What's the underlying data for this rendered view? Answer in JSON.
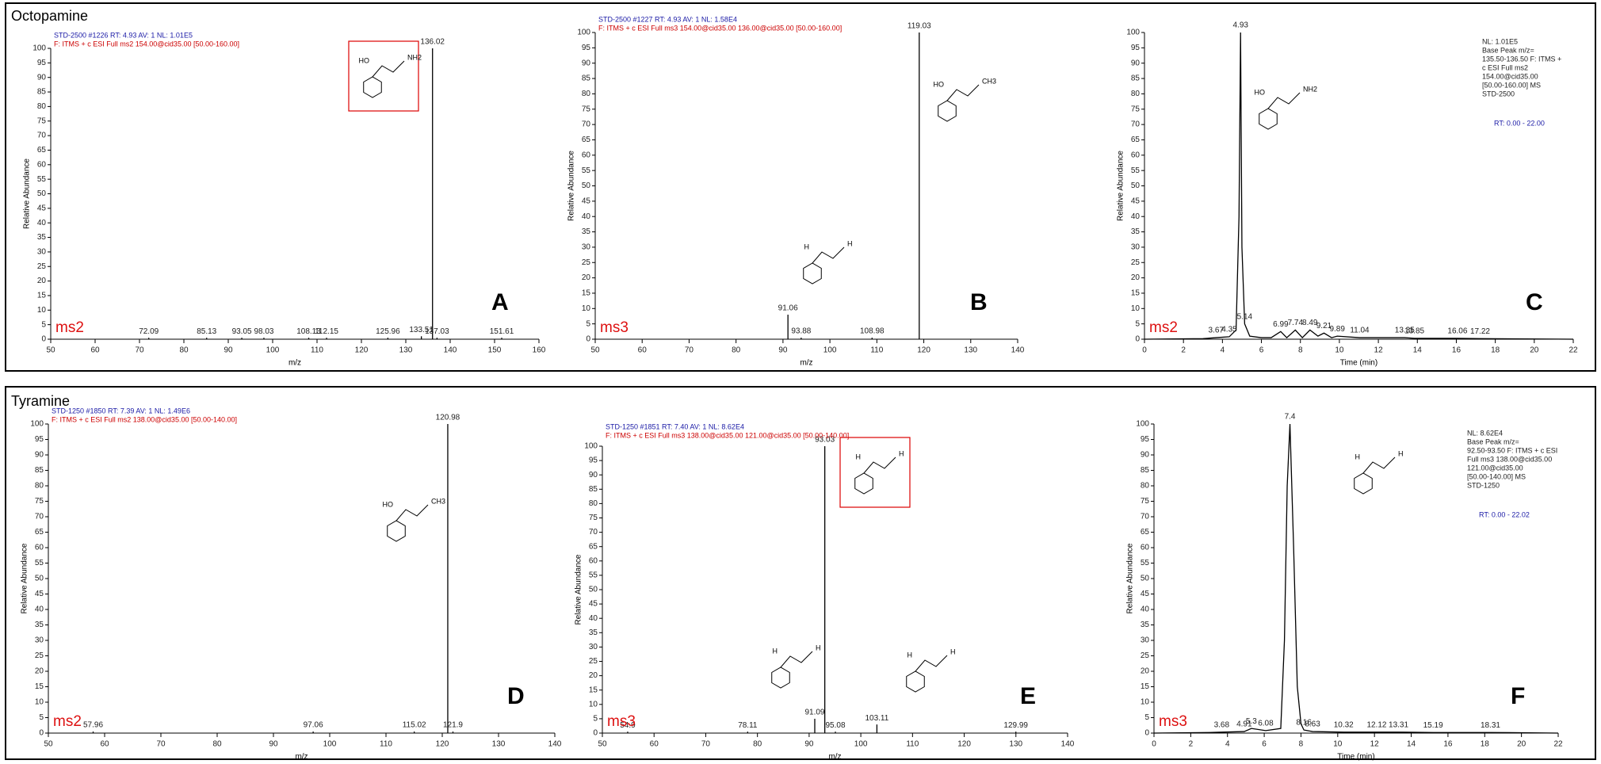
{
  "groups": [
    "Octopamine",
    "Tyramine"
  ],
  "chart_data": [
    {
      "type": "stick",
      "xlabel": "m/z",
      "ylabel": "Relative Abundance",
      "letter": "A",
      "stage": "ms2",
      "header": [
        "STD-2500 #1226  RT: 4.93  AV: 1  NL: 1.01E5",
        "F: ITMS + c ESI Full ms2 154.00@cid35.00 [50.00-160.00]"
      ],
      "header_colors": [
        "#1a1aa6",
        "#cc0000"
      ],
      "xlim": [
        50,
        160
      ],
      "xticks": [
        50,
        60,
        70,
        80,
        90,
        100,
        110,
        120,
        130,
        140,
        150,
        160
      ],
      "ylim": [
        0,
        100
      ],
      "yticks": [
        0,
        5,
        10,
        15,
        20,
        25,
        30,
        35,
        40,
        45,
        50,
        55,
        60,
        65,
        70,
        75,
        80,
        85,
        90,
        95,
        100
      ],
      "x": [
        72.09,
        85.13,
        93.05,
        98.03,
        108.13,
        112.15,
        125.96,
        133.51,
        136.02,
        137.03,
        151.61
      ],
      "values": [
        0.5,
        0.5,
        0.5,
        0.5,
        0.5,
        0.5,
        0.5,
        1,
        100,
        0.5,
        0.5
      ],
      "color": "#000000",
      "structures": [
        [
          "HO",
          "NH2"
        ]
      ]
    },
    {
      "type": "stick",
      "xlabel": "m/z",
      "ylabel": "Relative Abundance",
      "letter": "B",
      "stage": "ms3",
      "header": [
        "STD-2500 #1227  RT: 4.93  AV: 1  NL: 1.58E4",
        "F: ITMS + c ESI Full ms3 154.00@cid35.00 136.00@cid35.00 [50.00-160.00]"
      ],
      "header_colors": [
        "#1a1aa6",
        "#cc0000"
      ],
      "xlim": [
        50,
        140
      ],
      "xticks": [
        50,
        60,
        70,
        80,
        90,
        100,
        110,
        120,
        130,
        140
      ],
      "ylim": [
        0,
        100
      ],
      "yticks": [
        0,
        5,
        10,
        15,
        20,
        25,
        30,
        35,
        40,
        45,
        50,
        55,
        60,
        65,
        70,
        75,
        80,
        85,
        90,
        95,
        100
      ],
      "x": [
        91.06,
        93.88,
        108.98,
        119.03
      ],
      "values": [
        8,
        0.5,
        0.5,
        100
      ],
      "color": "#000000",
      "structures": [
        [
          "HO",
          "CH3"
        ],
        [
          "H",
          "H"
        ]
      ]
    },
    {
      "type": "line",
      "xlabel": "Time (min)",
      "ylabel": "Relative Abundance",
      "letter": "C",
      "stage": "ms2",
      "side_text": [
        "NL: 1.01E5",
        "Base Peak m/z=",
        "135.50-136.50 F: ITMS +",
        "c ESI Full ms2",
        "154.00@cid35.00",
        "[50.00-160.00] MS",
        "STD-2500"
      ],
      "rt_text": "RT: 0.00 - 22.00",
      "xlim": [
        0,
        22
      ],
      "xticks": [
        0,
        2,
        4,
        6,
        8,
        10,
        12,
        14,
        16,
        18,
        20,
        22
      ],
      "ylim": [
        0,
        100
      ],
      "yticks": [
        0,
        5,
        10,
        15,
        20,
        25,
        30,
        35,
        40,
        45,
        50,
        55,
        60,
        65,
        70,
        75,
        80,
        85,
        90,
        95,
        100
      ],
      "x": [
        0,
        3,
        3.67,
        4.35,
        4.7,
        4.85,
        4.93,
        5.0,
        5.14,
        5.4,
        6,
        6.5,
        6.99,
        7.3,
        7.74,
        8.1,
        8.49,
        8.9,
        9.21,
        9.6,
        9.89,
        11.04,
        13.35,
        13.85,
        16.06,
        17.22,
        22
      ],
      "values": [
        0,
        0.2,
        0.5,
        0.8,
        3,
        40,
        100,
        30,
        5,
        1,
        0.5,
        0.5,
        2.5,
        0.5,
        3,
        0.5,
        3,
        1,
        2,
        0.5,
        1,
        0.5,
        0.5,
        0.3,
        0.3,
        0.2,
        0
      ],
      "color": "#000000",
      "peaks": {
        "x": [
          3.67,
          4.35,
          4.93,
          5.14,
          6.99,
          7.74,
          8.49,
          9.21,
          9.89,
          11.04,
          13.35,
          13.85,
          16.06,
          17.22
        ],
        "values": [
          0.5,
          0.8,
          100,
          5,
          2.5,
          3,
          3,
          2,
          1,
          0.5,
          0.5,
          0.3,
          0.3,
          0.2
        ]
      },
      "structures": [
        [
          "HO",
          "NH2"
        ]
      ]
    },
    {
      "type": "stick",
      "xlabel": "m/z",
      "ylabel": "Relative Abundance",
      "letter": "D",
      "stage": "ms2",
      "header": [
        "STD-1250 #1850  RT: 7.39  AV: 1  NL: 1.49E6",
        "F: ITMS + c ESI Full ms2 138.00@cid35.00 [50.00-140.00]"
      ],
      "header_colors": [
        "#1a1aa6",
        "#cc0000"
      ],
      "xlim": [
        50,
        140
      ],
      "xticks": [
        50,
        60,
        70,
        80,
        90,
        100,
        110,
        120,
        130,
        140
      ],
      "ylim": [
        0,
        100
      ],
      "yticks": [
        0,
        5,
        10,
        15,
        20,
        25,
        30,
        35,
        40,
        45,
        50,
        55,
        60,
        65,
        70,
        75,
        80,
        85,
        90,
        95,
        100
      ],
      "x": [
        57.96,
        97.06,
        115.02,
        120.98,
        121.9
      ],
      "values": [
        0.5,
        0.5,
        0.5,
        100,
        0.5
      ],
      "color": "#000000",
      "structures": [
        [
          "HO",
          "CH3"
        ]
      ]
    },
    {
      "type": "stick",
      "xlabel": "m/z",
      "ylabel": "Relative Abundance",
      "letter": "E",
      "stage": "ms3",
      "header": [
        "STD-1250 #1851  RT: 7.40  AV: 1  NL: 8.62E4",
        "F: ITMS + c ESI Full ms3 138.00@cid35.00 121.00@cid35.00 [50.00-140.00]"
      ],
      "header_colors": [
        "#1a1aa6",
        "#cc0000"
      ],
      "xlim": [
        50,
        140
      ],
      "xticks": [
        50,
        60,
        70,
        80,
        90,
        100,
        110,
        120,
        130,
        140
      ],
      "ylim": [
        0,
        100
      ],
      "yticks": [
        0,
        5,
        10,
        15,
        20,
        25,
        30,
        35,
        40,
        45,
        50,
        55,
        60,
        65,
        70,
        75,
        80,
        85,
        90,
        95,
        100
      ],
      "x": [
        54.9,
        78.11,
        91.09,
        93.03,
        95.08,
        103.11,
        129.99
      ],
      "values": [
        0.5,
        0.5,
        5,
        100,
        0.5,
        3,
        0.5
      ],
      "color": "#000000",
      "structures": [
        [
          "H",
          "H"
        ],
        [
          "H",
          "H"
        ],
        [
          "H",
          "H"
        ]
      ]
    },
    {
      "type": "line",
      "xlabel": "Time (min)",
      "ylabel": "Relative Abundance",
      "letter": "F",
      "stage": "ms3",
      "side_text": [
        "NL: 8.62E4",
        "Base Peak m/z=",
        "92.50-93.50 F: ITMS + c ESI",
        "Full ms3 138.00@cid35.00",
        "121.00@cid35.00",
        "[50.00-140.00] MS",
        "STD-1250"
      ],
      "rt_text": "RT: 0.00 - 22.02",
      "xlim": [
        0,
        22
      ],
      "xticks": [
        0,
        2,
        4,
        6,
        8,
        10,
        12,
        14,
        16,
        18,
        20,
        22
      ],
      "ylim": [
        0,
        100
      ],
      "yticks": [
        0,
        5,
        10,
        15,
        20,
        25,
        30,
        35,
        40,
        45,
        50,
        55,
        60,
        65,
        70,
        75,
        80,
        85,
        90,
        95,
        100
      ],
      "x": [
        0,
        3,
        3.68,
        4.91,
        5.3,
        6.08,
        6.9,
        7.1,
        7.25,
        7.4,
        7.6,
        7.8,
        8.0,
        8.16,
        8.63,
        10.32,
        12.12,
        13.31,
        15.19,
        18.31,
        22
      ],
      "values": [
        0,
        0.2,
        0.3,
        0.5,
        1.5,
        0.8,
        1.5,
        30,
        80,
        100,
        60,
        15,
        3,
        1,
        0.5,
        0.3,
        0.3,
        0.3,
        0.2,
        0.2,
        0
      ],
      "color": "#000000",
      "peaks": {
        "x": [
          3.68,
          4.91,
          5.3,
          6.08,
          7.4,
          8.16,
          8.63,
          10.32,
          12.12,
          13.31,
          15.19,
          18.31
        ],
        "values": [
          0.3,
          0.5,
          1.5,
          0.8,
          100,
          1,
          0.5,
          0.3,
          0.3,
          0.3,
          0.2,
          0.2
        ]
      },
      "structures": [
        [
          "H",
          "H"
        ]
      ]
    }
  ]
}
